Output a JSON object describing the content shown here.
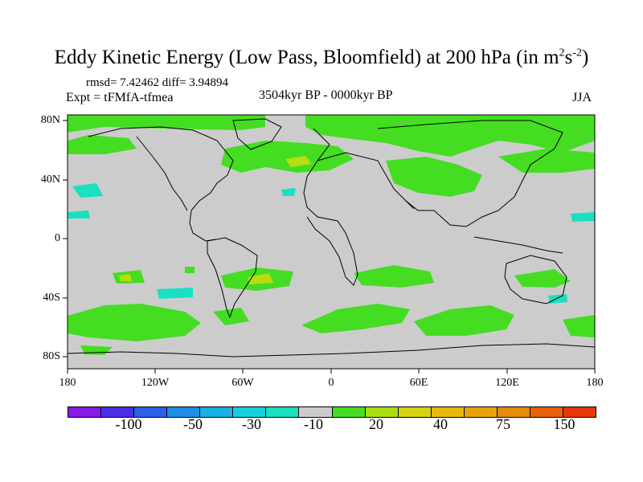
{
  "title": "Eddy Kinetic Energy (Low Pass, Bloomfield) at 200 hPa (in m",
  "title_units": {
    "sup1": "2",
    "mid": "s",
    "sup2": "-2",
    "close": ")"
  },
  "stats": "rmsd= 7.42462 diff= 3.94894",
  "expt": "Expt = tFMfA-tfmea",
  "period": "3504kyr BP - 0000kyr BP",
  "season": "JJA",
  "lat_labels": [
    "80N",
    "40N",
    "0",
    "40S",
    "80S"
  ],
  "lon_labels": [
    "180",
    "120W",
    "60W",
    "0",
    "60E",
    "120E",
    "180"
  ],
  "colorbar": {
    "colors": [
      "#8a19e6",
      "#4a2ee6",
      "#2b5fe6",
      "#1e8ee6",
      "#18b0e6",
      "#15cfdd",
      "#18e0c0",
      "#cccccc",
      "#44dd22",
      "#a8dd12",
      "#d8d012",
      "#e8b80e",
      "#e8a20c",
      "#e88a0a",
      "#e8620a",
      "#e8380a"
    ],
    "labels": [
      "-100",
      "-50",
      "-30",
      "-10",
      "20",
      "40",
      "75",
      "150"
    ]
  },
  "colors": {
    "land_background": "#cccccc",
    "positive_light": "#44dd22",
    "positive_mid": "#b8dd10",
    "negative_light": "#18e0c0"
  }
}
